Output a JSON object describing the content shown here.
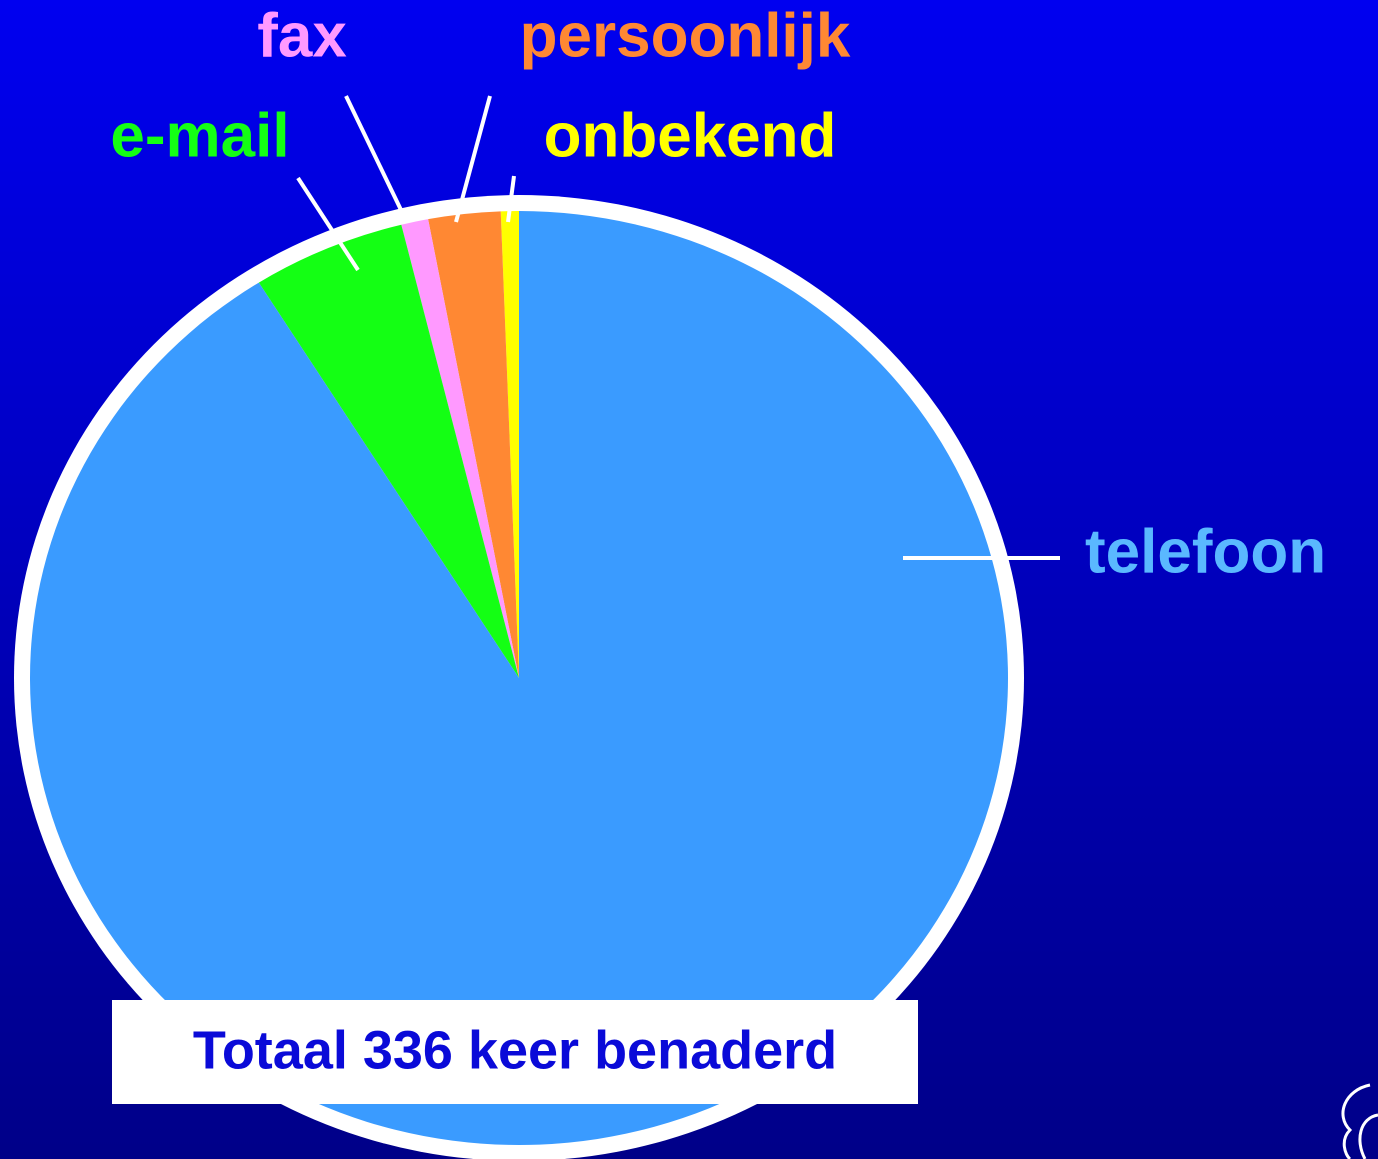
{
  "chart_data": {
    "type": "pie",
    "categories": [
      "telefoon",
      "e-mail",
      "fax",
      "persoonlijk",
      "onbekend"
    ],
    "values": [
      306,
      17,
      3,
      8,
      2
    ],
    "colors": [
      "#3a9bff",
      "#14ff14",
      "#ff99ff",
      "#ff8833",
      "#ffff00"
    ],
    "label_colors": [
      "#5ab8ff",
      "#14ff14",
      "#ff99ff",
      "#ff8833",
      "#ffff00"
    ],
    "annotation": "Totaal 336 keer benaderd"
  }
}
